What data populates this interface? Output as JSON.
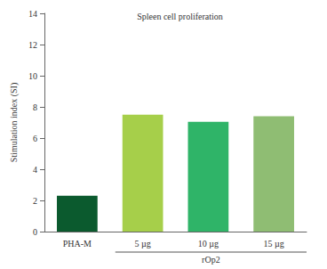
{
  "chart_data": {
    "type": "bar",
    "title": "Spleen cell proliferation",
    "y_label": "Stimulation index (SI)",
    "categories": [
      "PHA-M",
      "5 µg",
      "10 µg",
      "15 µg"
    ],
    "values": [
      2.3,
      7.5,
      7.05,
      7.4
    ],
    "colors": [
      "#0b5a2e",
      "#a6cf4a",
      "#2fb468",
      "#8fbd73"
    ],
    "ylim": [
      0,
      14
    ],
    "yticks": [
      0,
      2,
      4,
      6,
      8,
      10,
      12,
      14
    ],
    "grid": false,
    "annotations": [
      {
        "text": "rOp2",
        "categories": [
          "5 µg",
          "10 µg",
          "15 µg"
        ]
      }
    ]
  }
}
